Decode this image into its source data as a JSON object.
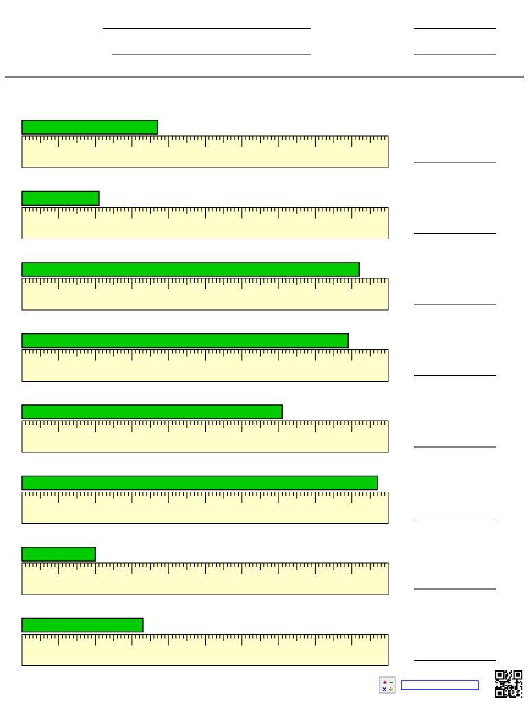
{
  "ruler_cm": [
    0,
    10
  ],
  "problems": [
    {
      "length": 3.7
    },
    {
      "length": 2.1
    },
    {
      "length": 9.2
    },
    {
      "length": 8.9
    },
    {
      "length": 7.1
    },
    {
      "length": 9.7
    },
    {
      "length": 2.0
    },
    {
      "length": 3.3
    }
  ]
}
